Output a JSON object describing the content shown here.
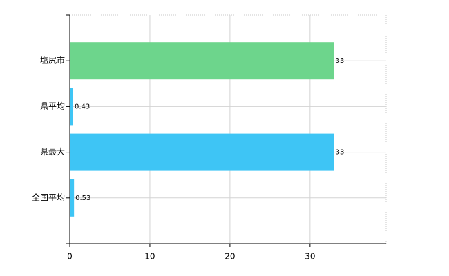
{
  "chart_data": {
    "type": "hbar",
    "categories": [
      "塩尻市",
      "県平均",
      "県最大",
      "全国平均"
    ],
    "values": [
      33,
      0.43,
      33,
      0.53
    ],
    "colors": [
      "#6dd58c",
      "#3ec5f5",
      "#3ec5f5",
      "#3ec5f5"
    ],
    "xlim": [
      0,
      39.5
    ],
    "xticks": [
      0,
      10,
      20,
      30
    ],
    "grid": true
  }
}
